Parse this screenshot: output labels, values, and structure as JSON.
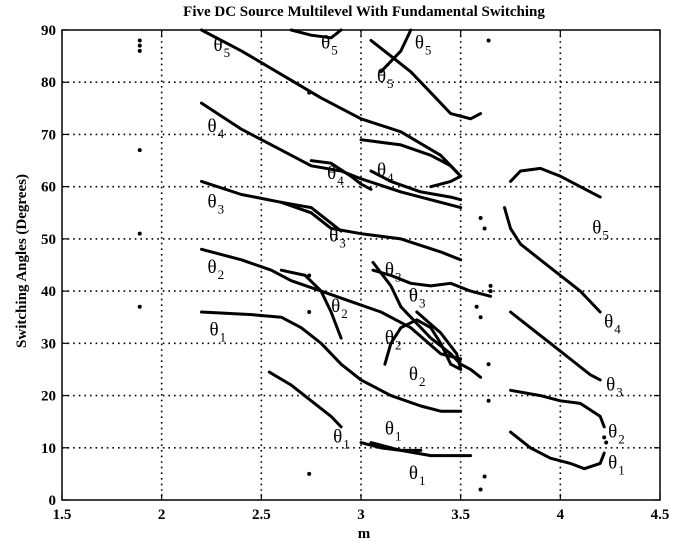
{
  "chart_data": {
    "type": "scatter",
    "title": "Five DC Source Multilevel With Fundamental Switching",
    "xlabel": "m",
    "ylabel": "Switching Angles (Degrees)",
    "xlim": [
      1.5,
      4.5
    ],
    "ylim": [
      0,
      90
    ],
    "xticks": [
      1.5,
      2,
      2.5,
      3,
      3.5,
      4,
      4.5
    ],
    "xtick_labels": [
      "1.5",
      "2",
      "2.5",
      "3",
      "3.5",
      "4",
      "4.5"
    ],
    "yticks": [
      0,
      10,
      20,
      30,
      40,
      50,
      60,
      70,
      80,
      90
    ],
    "ytick_labels": [
      "0",
      "10",
      "20",
      "30",
      "40",
      "50",
      "60",
      "70",
      "80",
      "90"
    ],
    "grid": "dotted",
    "series": [
      {
        "values": [
          [
            2.2,
            36
          ],
          [
            2.45,
            35.5
          ],
          [
            2.6,
            35
          ],
          [
            2.7,
            33
          ],
          [
            2.8,
            30
          ],
          [
            2.9,
            26
          ],
          [
            3.0,
            23
          ],
          [
            3.15,
            20
          ],
          [
            3.3,
            18
          ],
          [
            3.4,
            17
          ],
          [
            3.5,
            17
          ]
        ]
      },
      {
        "values": [
          [
            2.2,
            48
          ],
          [
            2.4,
            46
          ],
          [
            2.55,
            44
          ],
          [
            2.65,
            42
          ],
          [
            2.8,
            40
          ],
          [
            2.95,
            38
          ],
          [
            3.1,
            36
          ],
          [
            3.25,
            33
          ],
          [
            3.4,
            28
          ],
          [
            3.5,
            27
          ]
        ]
      },
      {
        "values": [
          [
            2.2,
            61
          ],
          [
            2.4,
            58.5
          ],
          [
            2.6,
            57
          ],
          [
            2.75,
            55
          ],
          [
            2.85,
            52
          ],
          [
            3.0,
            51
          ],
          [
            3.2,
            50
          ],
          [
            3.4,
            47.5
          ],
          [
            3.5,
            46
          ]
        ]
      },
      {
        "values": [
          [
            2.2,
            76
          ],
          [
            2.4,
            71
          ],
          [
            2.6,
            67
          ],
          [
            2.75,
            64
          ],
          [
            2.9,
            63
          ],
          [
            3.0,
            61.5
          ],
          [
            3.2,
            59
          ],
          [
            3.5,
            56
          ]
        ]
      },
      {
        "values": [
          [
            2.2,
            90
          ],
          [
            2.4,
            86
          ],
          [
            2.6,
            81.5
          ],
          [
            2.8,
            77
          ],
          [
            3.0,
            73
          ],
          [
            3.2,
            70.5
          ],
          [
            3.4,
            66
          ],
          [
            3.5,
            62
          ]
        ]
      },
      {
        "values": [
          [
            2.54,
            24.5
          ],
          [
            2.65,
            22
          ],
          [
            2.75,
            19
          ],
          [
            2.85,
            16
          ],
          [
            2.9,
            14
          ]
        ]
      },
      {
        "values": [
          [
            2.6,
            44
          ],
          [
            2.72,
            43
          ],
          [
            2.8,
            40
          ],
          [
            2.85,
            36
          ],
          [
            2.9,
            31
          ]
        ]
      },
      {
        "values": [
          [
            2.6,
            57
          ],
          [
            2.75,
            56
          ],
          [
            2.85,
            53
          ],
          [
            2.9,
            51.5
          ]
        ]
      },
      {
        "values": [
          [
            2.75,
            65
          ],
          [
            2.85,
            64.5
          ],
          [
            2.95,
            62
          ],
          [
            3.0,
            60.5
          ],
          [
            3.05,
            59.5
          ]
        ]
      },
      {
        "values": [
          [
            2.65,
            90
          ],
          [
            2.75,
            89
          ],
          [
            2.85,
            88.5
          ],
          [
            2.9,
            90
          ]
        ]
      },
      {
        "values": [
          [
            3.05,
            11
          ],
          [
            3.2,
            9.5
          ],
          [
            3.35,
            8.5
          ],
          [
            3.45,
            8.5
          ],
          [
            3.55,
            8.5
          ]
        ]
      },
      {
        "values": [
          [
            3.06,
            45.5
          ],
          [
            3.15,
            41
          ],
          [
            3.2,
            37
          ],
          [
            3.25,
            35
          ],
          [
            3.35,
            31
          ],
          [
            3.45,
            28
          ],
          [
            3.5,
            26
          ],
          [
            3.55,
            25
          ],
          [
            3.6,
            23.5
          ]
        ]
      },
      {
        "values": [
          [
            3.06,
            44
          ],
          [
            3.15,
            43
          ],
          [
            3.25,
            41.5
          ],
          [
            3.35,
            41
          ],
          [
            3.45,
            41.5
          ],
          [
            3.55,
            40
          ],
          [
            3.65,
            39
          ]
        ]
      },
      {
        "values": [
          [
            3.05,
            63
          ],
          [
            3.15,
            61
          ],
          [
            3.3,
            59
          ],
          [
            3.45,
            58
          ],
          [
            3.5,
            57.5
          ]
        ]
      },
      {
        "values": [
          [
            3.05,
            88
          ],
          [
            3.15,
            85
          ],
          [
            3.25,
            82
          ],
          [
            3.35,
            78
          ],
          [
            3.45,
            74
          ],
          [
            3.55,
            73
          ],
          [
            3.6,
            74
          ]
        ]
      },
      {
        "values": [
          [
            3.12,
            26
          ],
          [
            3.15,
            30
          ],
          [
            3.2,
            33
          ],
          [
            3.28,
            34.5
          ],
          [
            3.35,
            33
          ],
          [
            3.4,
            30
          ],
          [
            3.45,
            26
          ],
          [
            3.5,
            25
          ],
          [
            3.48,
            28
          ],
          [
            3.4,
            32
          ],
          [
            3.28,
            36
          ]
        ]
      },
      {
        "values": [
          [
            3.0,
            69
          ],
          [
            3.2,
            68
          ],
          [
            3.35,
            66
          ],
          [
            3.45,
            64
          ],
          [
            3.5,
            62
          ],
          [
            3.45,
            61
          ],
          [
            3.35,
            60
          ]
        ]
      },
      {
        "values": [
          [
            3.25,
            90
          ],
          [
            3.2,
            86
          ],
          [
            3.15,
            84
          ],
          [
            3.1,
            82
          ]
        ]
      },
      {
        "values": [
          [
            3.75,
            61
          ],
          [
            3.8,
            63
          ],
          [
            3.9,
            63.5
          ],
          [
            4.0,
            62
          ],
          [
            4.1,
            60
          ],
          [
            4.2,
            58
          ]
        ]
      },
      {
        "values": [
          [
            3.72,
            56
          ],
          [
            3.75,
            52
          ],
          [
            3.8,
            49
          ],
          [
            3.9,
            46
          ],
          [
            4.0,
            43
          ],
          [
            4.1,
            40
          ],
          [
            4.2,
            36
          ]
        ]
      },
      {
        "values": [
          [
            3.75,
            36
          ],
          [
            3.85,
            33
          ],
          [
            3.95,
            30
          ],
          [
            4.05,
            27
          ],
          [
            4.15,
            24
          ],
          [
            4.2,
            23
          ]
        ]
      },
      {
        "values": [
          [
            3.75,
            21
          ],
          [
            3.9,
            20
          ],
          [
            4.0,
            19
          ],
          [
            4.1,
            18.5
          ],
          [
            4.2,
            16
          ],
          [
            4.22,
            14
          ]
        ]
      },
      {
        "values": [
          [
            3.75,
            13
          ],
          [
            3.85,
            10
          ],
          [
            3.95,
            8
          ],
          [
            4.05,
            7
          ],
          [
            4.12,
            6
          ],
          [
            4.2,
            7
          ],
          [
            4.22,
            9
          ]
        ]
      },
      {
        "values": [
          [
            3.0,
            11
          ],
          [
            3.1,
            10
          ],
          [
            3.2,
            9.5
          ],
          [
            3.3,
            9.5
          ]
        ]
      }
    ],
    "scattered_points": [
      [
        1.89,
        37
      ],
      [
        1.89,
        51
      ],
      [
        1.89,
        67
      ],
      [
        1.89,
        88
      ],
      [
        1.89,
        87
      ],
      [
        1.89,
        86
      ],
      [
        2.74,
        5
      ],
      [
        2.74,
        36
      ],
      [
        2.74,
        43
      ],
      [
        2.74,
        78
      ],
      [
        3.6,
        2
      ],
      [
        3.62,
        4.5
      ],
      [
        3.64,
        19
      ],
      [
        3.64,
        26
      ],
      [
        3.65,
        40
      ],
      [
        3.65,
        41
      ],
      [
        3.64,
        88
      ],
      [
        3.6,
        35
      ],
      [
        3.58,
        37
      ],
      [
        3.6,
        54
      ],
      [
        3.62,
        52
      ],
      [
        4.22,
        12
      ],
      [
        4.23,
        11
      ]
    ],
    "annotations": [
      {
        "main": "θ",
        "sub": "1",
        "x": 2.24,
        "y": 31.5
      },
      {
        "main": "θ",
        "sub": "2",
        "x": 2.23,
        "y": 43.5
      },
      {
        "main": "θ",
        "sub": "3",
        "x": 2.23,
        "y": 56
      },
      {
        "main": "θ",
        "sub": "4",
        "x": 2.23,
        "y": 70.5
      },
      {
        "main": "θ",
        "sub": "5",
        "x": 2.26,
        "y": 86
      },
      {
        "main": "θ",
        "sub": "1",
        "x": 2.86,
        "y": 11
      },
      {
        "main": "θ",
        "sub": "2",
        "x": 2.85,
        "y": 36
      },
      {
        "main": "θ",
        "sub": "3",
        "x": 2.84,
        "y": 49.5
      },
      {
        "main": "θ",
        "sub": "4",
        "x": 2.83,
        "y": 61.5
      },
      {
        "main": "θ",
        "sub": "5",
        "x": 2.8,
        "y": 86.5
      },
      {
        "main": "θ",
        "sub": "1",
        "x": 3.12,
        "y": 12.5
      },
      {
        "main": "θ",
        "sub": "1",
        "x": 3.24,
        "y": 4
      },
      {
        "main": "θ",
        "sub": "2",
        "x": 3.12,
        "y": 30
      },
      {
        "main": "θ",
        "sub": "2",
        "x": 3.24,
        "y": 23
      },
      {
        "main": "θ",
        "sub": "3",
        "x": 3.12,
        "y": 43
      },
      {
        "main": "θ",
        "sub": "3",
        "x": 3.24,
        "y": 38
      },
      {
        "main": "θ",
        "sub": "4",
        "x": 3.08,
        "y": 62
      },
      {
        "main": "θ",
        "sub": "5",
        "x": 3.08,
        "y": 80
      },
      {
        "main": "θ",
        "sub": "5",
        "x": 3.27,
        "y": 86.5
      },
      {
        "main": "θ",
        "sub": "1",
        "x": 4.24,
        "y": 6
      },
      {
        "main": "θ",
        "sub": "2",
        "x": 4.24,
        "y": 12
      },
      {
        "main": "θ",
        "sub": "3",
        "x": 4.23,
        "y": 21
      },
      {
        "main": "θ",
        "sub": "4",
        "x": 4.22,
        "y": 33
      },
      {
        "main": "θ",
        "sub": "5",
        "x": 4.16,
        "y": 51
      }
    ]
  }
}
